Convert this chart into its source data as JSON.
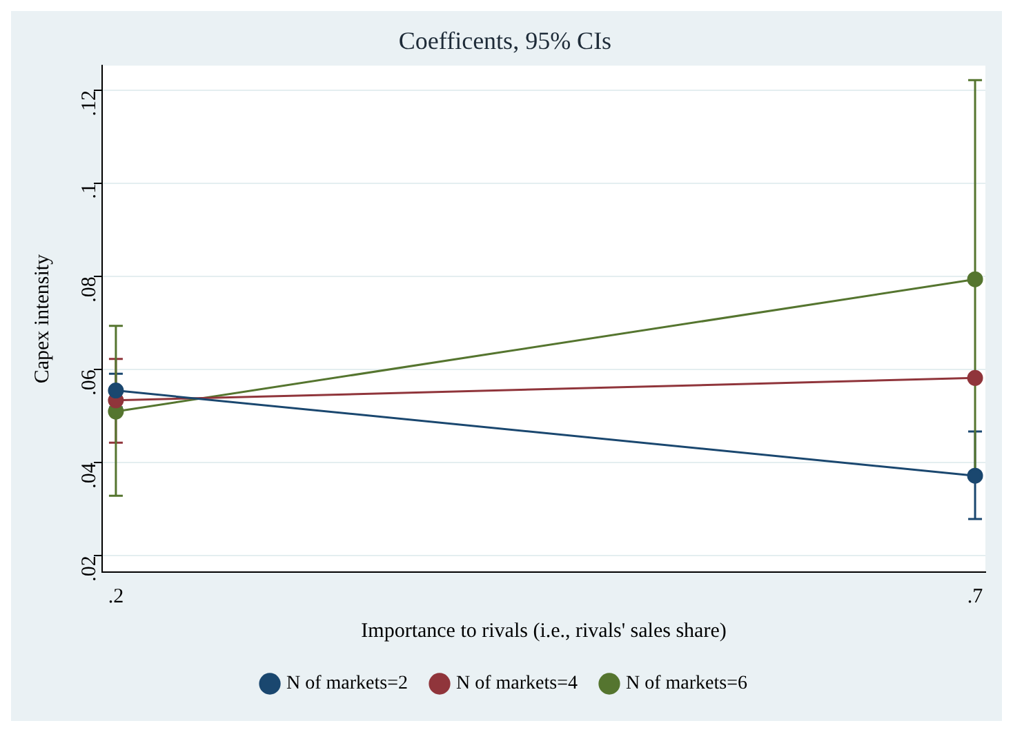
{
  "chart_data": {
    "type": "line",
    "title": "Coefficents, 95% CIs",
    "xlabel": "Importance to rivals (i.e., rivals' sales share)",
    "ylabel": "Capex intensity",
    "x": [
      0.2,
      0.7
    ],
    "series": [
      {
        "name": "N of markets=2",
        "color": "#1a476f",
        "values": [
          0.0555,
          0.0372
        ],
        "errors": [
          [
            0.0519,
            0.0591
          ],
          [
            0.0279,
            0.0467
          ]
        ]
      },
      {
        "name": "N of markets=4",
        "color": "#90353b",
        "values": [
          0.0534,
          0.0582
        ],
        "errors": [
          [
            0.0443,
            0.0623
          ],
          null
        ]
      },
      {
        "name": "N of markets=6",
        "color": "#55752f",
        "values": [
          0.051,
          0.0794
        ],
        "errors": [
          [
            0.0329,
            0.0694
          ],
          [
            0.0366,
            0.1222
          ]
        ]
      }
    ],
    "xlim": [
      0.192,
      0.706
    ],
    "xticks": [
      {
        "value": 0.2,
        "label": ".2"
      },
      {
        "value": 0.7,
        "label": ".7"
      }
    ],
    "ylim": [
      0.0165,
      0.1253
    ],
    "yticks": [
      {
        "value": 0.02,
        "label": ".02"
      },
      {
        "value": 0.04,
        "label": ".04"
      },
      {
        "value": 0.06,
        "label": ".06"
      },
      {
        "value": 0.08,
        "label": ".08"
      },
      {
        "value": 0.1,
        "label": ".1"
      },
      {
        "value": 0.12,
        "label": ".12"
      }
    ],
    "grid": "y",
    "legend": "bottom",
    "marker": "circle",
    "line_style": "solid"
  }
}
